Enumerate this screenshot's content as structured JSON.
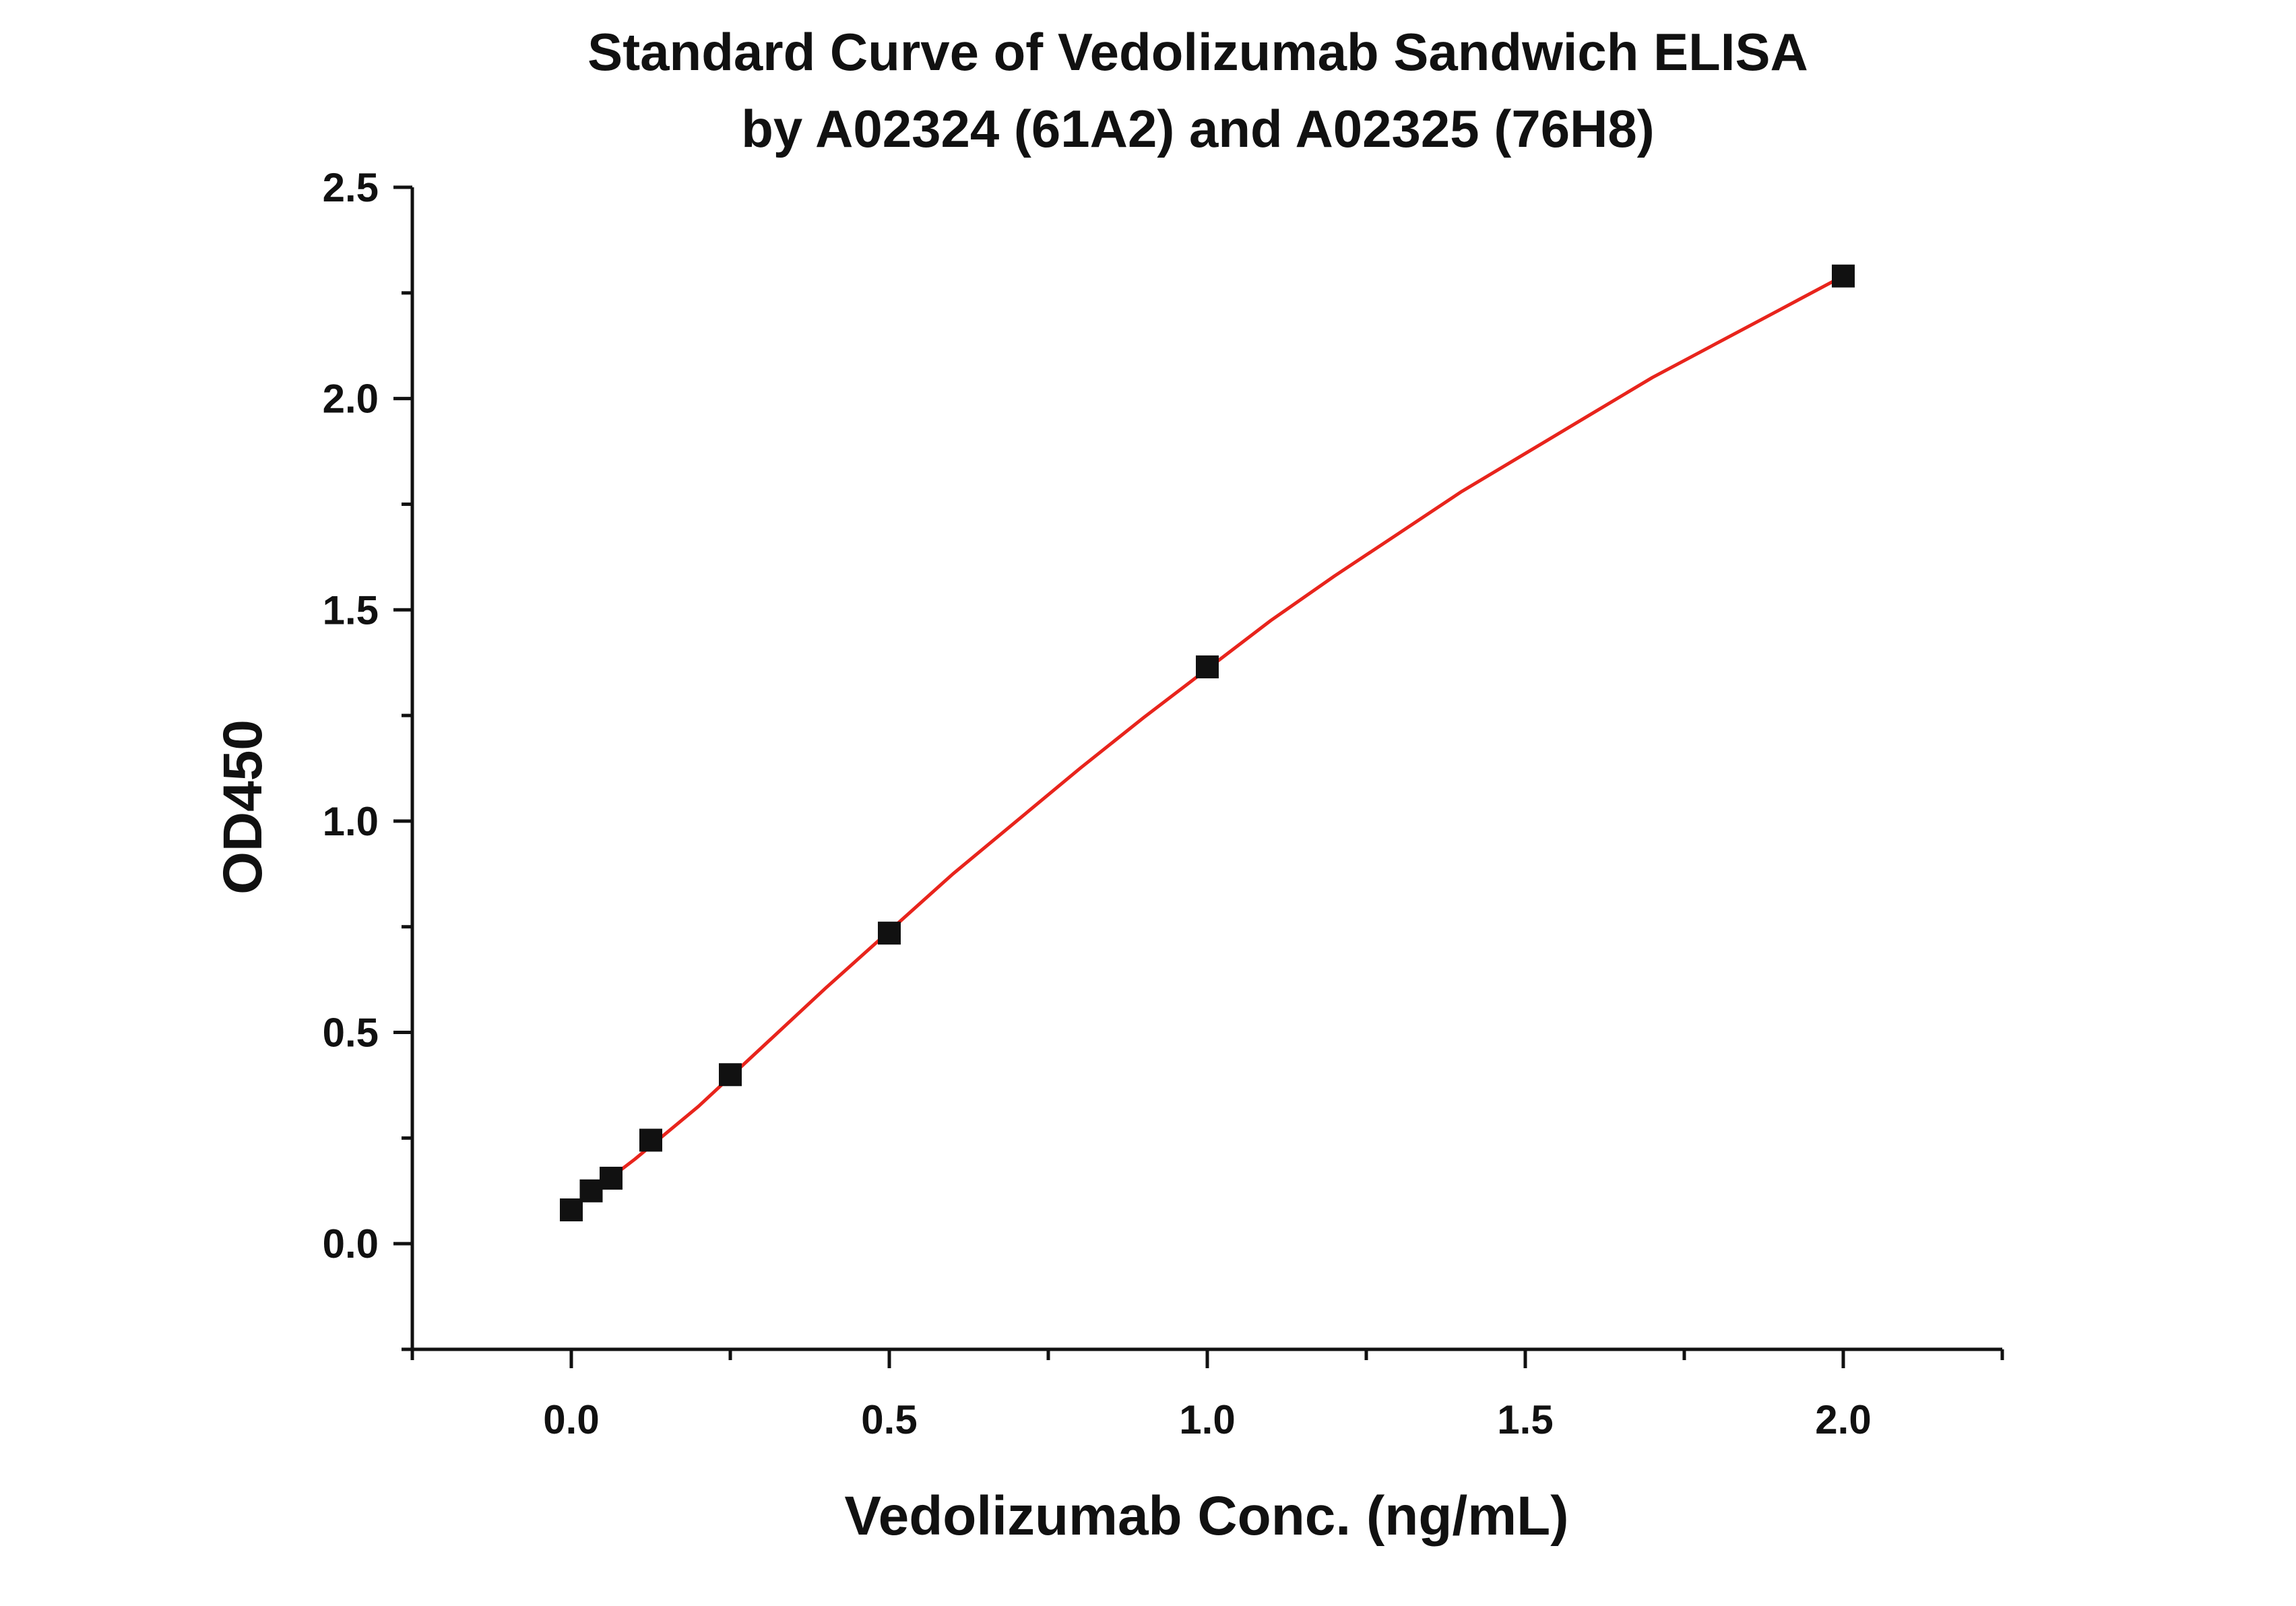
{
  "chart_data": {
    "type": "scatter",
    "title": [
      "Standard Curve of Vedolizumab Sandwich ELISA",
      "by A02324 (61A2) and A02325 (76H8)"
    ],
    "xlabel": "Vedolizumab Conc. (ng/mL)",
    "ylabel": "OD450",
    "xlim": [
      -0.25,
      2.25
    ],
    "ylim": [
      -0.25,
      2.5
    ],
    "x_ticks": [
      {
        "value": 0.0,
        "label": "0.0"
      },
      {
        "value": 0.5,
        "label": "0.5"
      },
      {
        "value": 1.0,
        "label": "1.0"
      },
      {
        "value": 1.5,
        "label": "1.5"
      },
      {
        "value": 2.0,
        "label": "2.0"
      }
    ],
    "x_minor_ticks": [
      -0.25,
      0.25,
      0.75,
      1.25,
      1.75,
      2.25
    ],
    "y_ticks": [
      {
        "value": 0.0,
        "label": "0.0"
      },
      {
        "value": 0.5,
        "label": "0.5"
      },
      {
        "value": 1.0,
        "label": "1.0"
      },
      {
        "value": 1.5,
        "label": "1.5"
      },
      {
        "value": 2.0,
        "label": "2.0"
      },
      {
        "value": 2.5,
        "label": "2.5"
      }
    ],
    "y_minor_ticks": [
      -0.25,
      0.25,
      0.75,
      1.25,
      1.75,
      2.25
    ],
    "grid": false,
    "legend": "none",
    "series": [
      {
        "kind": "points",
        "marker": "square",
        "color": "#111111",
        "x": [
          0,
          0.03125,
          0.0625,
          0.125,
          0.25,
          0.5,
          1.0,
          2.0
        ],
        "y": [
          0.08,
          0.125,
          0.155,
          0.245,
          0.4,
          0.735,
          1.365,
          2.29
        ]
      },
      {
        "kind": "fit-curve",
        "color": "#e8241c",
        "x": [
          0,
          0.1,
          0.2,
          0.3,
          0.4,
          0.5,
          0.6,
          0.7,
          0.8,
          0.9,
          1.0,
          1.1,
          1.2,
          1.3,
          1.4,
          1.5,
          1.6,
          1.7,
          1.8,
          1.9,
          2.0
        ],
        "y": [
          0.085,
          0.2,
          0.325,
          0.465,
          0.605,
          0.74,
          0.875,
          1.0,
          1.125,
          1.245,
          1.36,
          1.475,
          1.58,
          1.68,
          1.78,
          1.87,
          1.96,
          2.05,
          2.13,
          2.21,
          2.29
        ]
      }
    ],
    "axis_color": "#111111"
  }
}
